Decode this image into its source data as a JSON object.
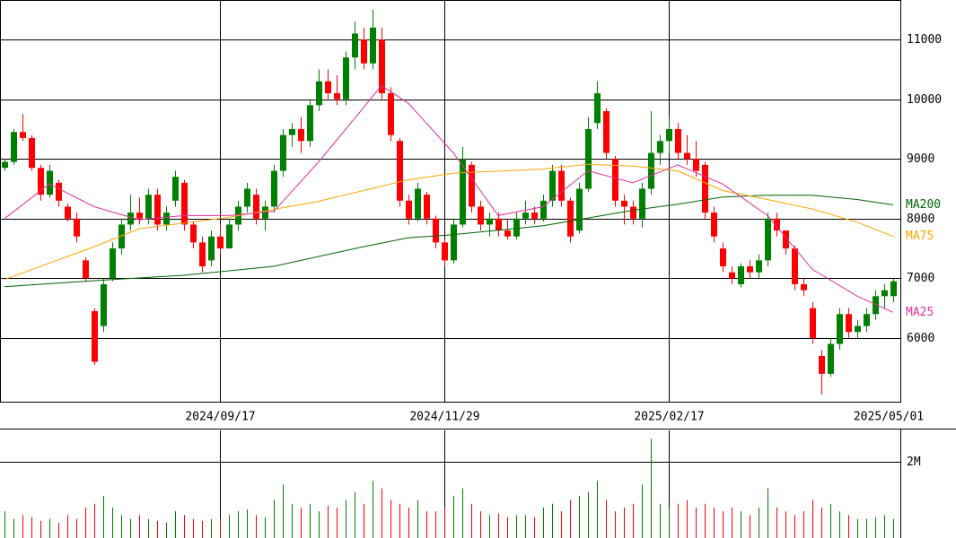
{
  "chart_data": {
    "type": "candlestick",
    "up_color": "#008000",
    "down_color": "#ff0000",
    "xlim": [
      -0.5,
      99.8
    ],
    "xticks": [
      {
        "value": 24,
        "label": "2024/09/17"
      },
      {
        "value": 49,
        "label": "2024/11/29"
      },
      {
        "value": 74,
        "label": "2025/02/17"
      },
      {
        "value": 99.8,
        "label": "2025/05/01"
      }
    ],
    "ylim": [
      4932,
      11662
    ],
    "yticks": [
      6000,
      7000,
      8000,
      9000,
      10000,
      11000
    ],
    "open": [
      8850,
      8950,
      9450,
      9350,
      8850,
      8400,
      8600,
      8200,
      8000,
      7300,
      6450,
      6200,
      7000,
      7500,
      7900,
      8100,
      8000,
      8400,
      7900,
      8300,
      8600,
      7900,
      7600,
      7300,
      7700,
      7500,
      7900,
      8200,
      8400,
      8000,
      8200,
      8800,
      9400,
      9500,
      9300,
      9900,
      10300,
      10100,
      10000,
      10700,
      11000,
      10600,
      11000,
      10100,
      9300,
      8300,
      8000,
      8400,
      8000,
      7600,
      7300,
      7900,
      8900,
      8200,
      7900,
      8000,
      7800,
      7700,
      8000,
      8100,
      8000,
      8300,
      8800,
      8300,
      7800,
      8500,
      9600,
      9800,
      9000,
      8300,
      8200,
      8000,
      8500,
      9100,
      9300,
      9500,
      9100,
      9000,
      8900,
      8100,
      7500,
      7100,
      6900,
      7200,
      7100,
      7300,
      8000,
      7800,
      7500,
      6900,
      6500,
      5700,
      5400,
      5900,
      6400,
      6100,
      6200,
      6400,
      6700,
      6700
    ],
    "high": [
      9000,
      9500,
      9750,
      9400,
      8900,
      8900,
      8650,
      8250,
      8100,
      7350,
      6500,
      7000,
      7600,
      8000,
      8400,
      8350,
      8500,
      8500,
      8200,
      8800,
      8650,
      7950,
      7700,
      7800,
      7900,
      8000,
      8300,
      8600,
      8500,
      8300,
      8900,
      9500,
      9600,
      9700,
      10000,
      10500,
      10500,
      10400,
      10800,
      11300,
      11200,
      11500,
      11200,
      10200,
      9350,
      8400,
      8600,
      8450,
      8050,
      7650,
      8000,
      9200,
      8950,
      8300,
      8100,
      8100,
      8000,
      8100,
      8300,
      8200,
      8400,
      8900,
      8900,
      8350,
      8600,
      9700,
      10300,
      9850,
      9050,
      8400,
      8300,
      8600,
      9800,
      9400,
      9700,
      9600,
      9400,
      9300,
      8950,
      8200,
      7600,
      7200,
      7250,
      7300,
      7400,
      8100,
      8100,
      7800,
      7550,
      7000,
      6600,
      5800,
      6000,
      6500,
      6500,
      6300,
      6500,
      6800,
      6900,
      7000
    ],
    "low": [
      8800,
      8900,
      9300,
      8800,
      8300,
      8350,
      8200,
      7950,
      7600,
      6950,
      5550,
      6100,
      6950,
      7400,
      7800,
      7900,
      7900,
      7800,
      7800,
      8200,
      7800,
      7500,
      7100,
      7200,
      7400,
      7500,
      7800,
      8100,
      7900,
      7800,
      8100,
      8700,
      9200,
      9100,
      9200,
      9800,
      10000,
      9900,
      9900,
      10500,
      10500,
      10500,
      10000,
      9300,
      8200,
      7900,
      7950,
      7900,
      7500,
      7200,
      7250,
      7850,
      8100,
      7800,
      7700,
      7700,
      7650,
      7650,
      7900,
      7900,
      7950,
      8200,
      8200,
      7600,
      7750,
      8450,
      9500,
      9000,
      8200,
      7900,
      7900,
      7850,
      8400,
      8900,
      9100,
      9000,
      8900,
      8700,
      8000,
      7600,
      7100,
      6900,
      6850,
      7000,
      7000,
      7200,
      7700,
      7400,
      6800,
      6700,
      5900,
      5050,
      5350,
      5800,
      6000,
      6000,
      6100,
      6300,
      6500,
      6600
    ],
    "close": [
      8950,
      9450,
      9350,
      8850,
      8400,
      8800,
      8300,
      8000,
      7700,
      7000,
      5600,
      6900,
      7500,
      7900,
      8100,
      8000,
      8400,
      7900,
      8100,
      8700,
      7900,
      7600,
      7200,
      7700,
      7500,
      7900,
      8200,
      8500,
      8000,
      8200,
      8800,
      9400,
      9500,
      9300,
      9900,
      10300,
      10100,
      10000,
      10700,
      11100,
      10600,
      11200,
      10100,
      9400,
      8300,
      8000,
      8500,
      8000,
      7600,
      7300,
      7900,
      9000,
      8200,
      7900,
      8000,
      7800,
      7700,
      8000,
      8100,
      8000,
      8300,
      8800,
      8300,
      7700,
      8500,
      9500,
      10100,
      9100,
      8300,
      8200,
      8000,
      8500,
      9100,
      9300,
      9500,
      9100,
      9000,
      8800,
      8100,
      7700,
      7200,
      7000,
      7200,
      7100,
      7300,
      8000,
      7800,
      7500,
      6900,
      6800,
      6000,
      5400,
      5900,
      6400,
      6100,
      6200,
      6400,
      6700,
      6800,
      6950
    ],
    "moving_averages": [
      {
        "name": "MA200",
        "color": "#006400",
        "x": [
          0,
          10,
          20,
          30,
          40,
          45,
          50,
          60,
          70,
          75,
          80,
          85,
          90,
          95,
          99
        ],
        "values": [
          6860,
          6960,
          7050,
          7200,
          7530,
          7680,
          7730,
          7880,
          8140,
          8240,
          8360,
          8390,
          8390,
          8320,
          8230
        ]
      },
      {
        "name": "MA75",
        "color": "#ffa500",
        "x": [
          0,
          10,
          15,
          25,
          35,
          45,
          50,
          60,
          65,
          70,
          75,
          80,
          85,
          90,
          95,
          99
        ],
        "values": [
          6980,
          7530,
          7830,
          8020,
          8290,
          8650,
          8760,
          8830,
          8910,
          8880,
          8800,
          8470,
          8320,
          8160,
          7940,
          7700
        ]
      },
      {
        "name": "MA25",
        "color": "#e0309c",
        "x": [
          0,
          5,
          10,
          15,
          20,
          25,
          30,
          35,
          40,
          42,
          45,
          50,
          55,
          60,
          65,
          70,
          75,
          80,
          85,
          90,
          95,
          99
        ],
        "values": [
          8000,
          8580,
          8200,
          7980,
          8050,
          8050,
          8120,
          8950,
          9860,
          10230,
          9930,
          9100,
          8050,
          8200,
          8800,
          8600,
          8900,
          8580,
          8050,
          7150,
          6700,
          6430
        ]
      }
    ],
    "volume": {
      "ylim": [
        0,
        2820000
      ],
      "yticks": [
        {
          "value": 2000000,
          "label": "2M"
        }
      ],
      "values": [
        700000,
        500000,
        600000,
        550000,
        450000,
        500000,
        400000,
        600000,
        500000,
        800000,
        900000,
        1100000,
        800000,
        600000,
        500000,
        600000,
        500000,
        450000,
        400000,
        700000,
        600000,
        500000,
        450000,
        500000,
        500000,
        600000,
        700000,
        750000,
        600000,
        550000,
        1000000,
        1400000,
        900000,
        800000,
        900000,
        700000,
        850000,
        800000,
        1000000,
        1200000,
        900000,
        1500000,
        1300000,
        1000000,
        900000,
        800000,
        1000000,
        700000,
        700000,
        800000,
        1100000,
        1300000,
        900000,
        700000,
        600000,
        650000,
        550000,
        600000,
        600000,
        550000,
        800000,
        900000,
        700000,
        1000000,
        1100000,
        1200000,
        1500000,
        1000000,
        700000,
        800000,
        900000,
        1400000,
        2600000,
        900000,
        800000,
        900000,
        1000000,
        800000,
        900000,
        800000,
        700000,
        800000,
        700000,
        600000,
        800000,
        1300000,
        800000,
        700000,
        600000,
        700000,
        1000000,
        800000,
        900000,
        700000,
        600000,
        500000,
        500000,
        550000,
        600000,
        500000
      ]
    }
  }
}
